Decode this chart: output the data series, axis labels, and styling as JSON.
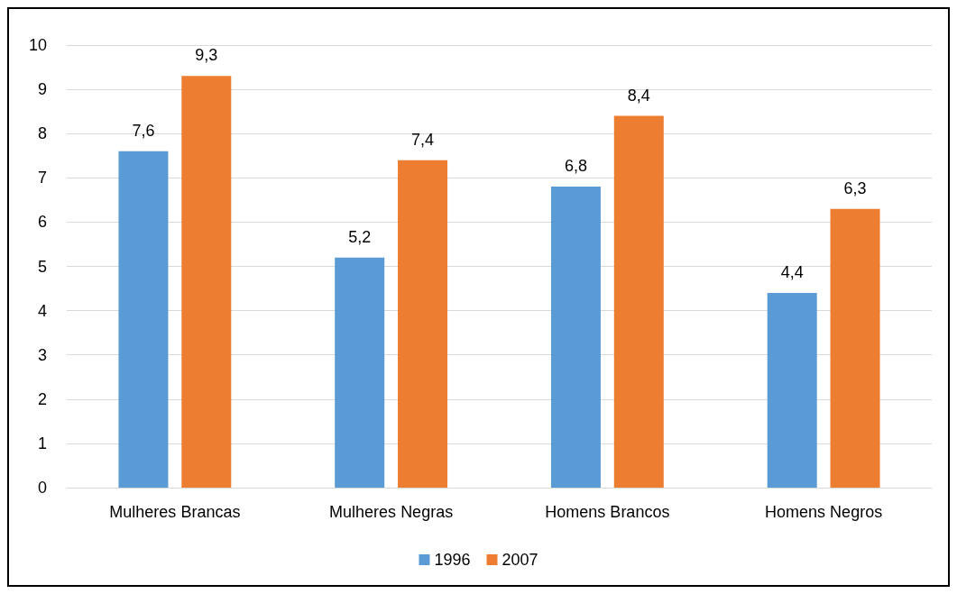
{
  "chart_data": {
    "type": "bar",
    "categories": [
      "Mulheres Brancas",
      "Mulheres Negras",
      "Homens Brancos",
      "Homens Negros"
    ],
    "series": [
      {
        "name": "1996",
        "color": "#5b9bd5",
        "values": [
          7.6,
          5.2,
          6.8,
          4.4
        ],
        "value_labels": [
          "7,6",
          "5,2",
          "6,8",
          "4,4"
        ]
      },
      {
        "name": "2007",
        "color": "#ed7d31",
        "values": [
          9.3,
          7.4,
          8.4,
          6.3
        ],
        "value_labels": [
          "9,3",
          "7,4",
          "8,4",
          "6,3"
        ]
      }
    ],
    "ylim": [
      0,
      10
    ],
    "yticks": [
      0,
      1,
      2,
      3,
      4,
      5,
      6,
      7,
      8,
      9,
      10
    ],
    "grid": "y",
    "legend": "bottom"
  }
}
